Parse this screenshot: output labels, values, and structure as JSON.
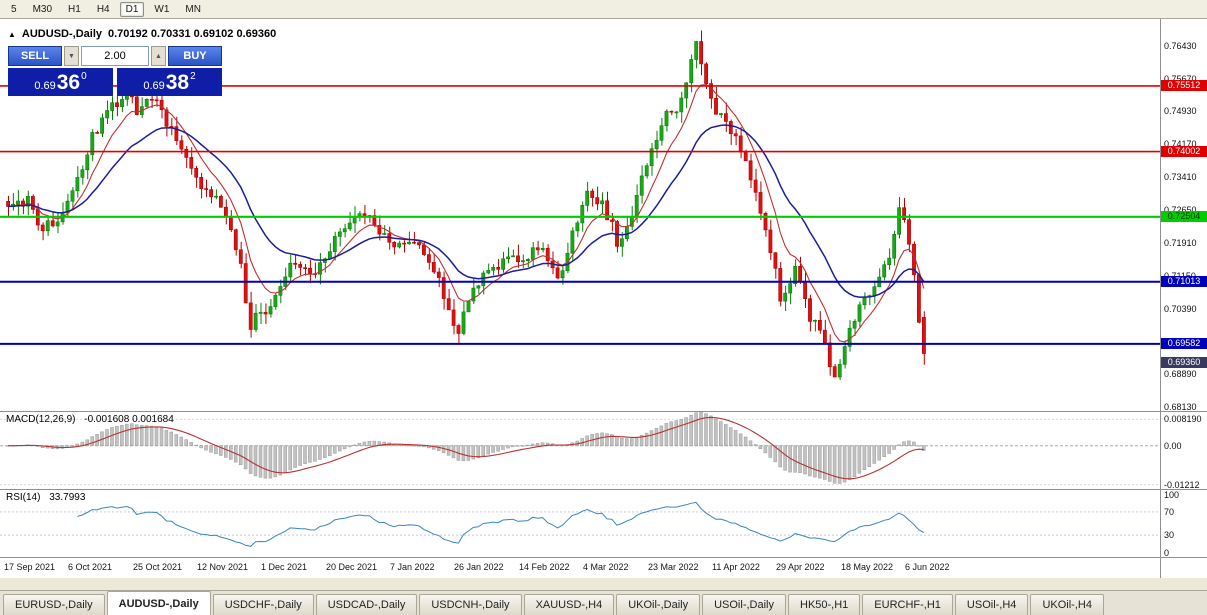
{
  "toolbar": {
    "timeframes": [
      "5",
      "M30",
      "H1",
      "H4",
      "D1",
      "W1",
      "MN"
    ],
    "active": "D1"
  },
  "icons": {
    "collapse": "▲",
    "volume_up": "▲",
    "volume_down": "▼"
  },
  "chart": {
    "symbol_title": "AUDUSD-,Daily",
    "ohlc_text": "0.70192 0.70331 0.69102 0.69360",
    "trade_panel": {
      "sell_label": "SELL",
      "buy_label": "BUY",
      "volume": "2.00",
      "sell_price": {
        "prefix": "0.69",
        "big": "36",
        "sup": "0"
      },
      "buy_price": {
        "prefix": "0.69",
        "big": "38",
        "sup": "2"
      }
    }
  },
  "macd_panel": {
    "label": "MACD(12,26,9)",
    "values": "-0.001608 0.001684"
  },
  "rsi_panel": {
    "label": "RSI(14)",
    "value": "33.7993"
  },
  "tabs": {
    "active": "AUDUSD-,Daily",
    "items": [
      "EURUSD-,Daily",
      "AUDUSD-,Daily",
      "USDCHF-,Daily",
      "USDCAD-,Daily",
      "USDCNH-,Daily",
      "XAUUSD-,H4",
      "UKOil-,Daily",
      "USOil-,Daily",
      "HK50-,H1",
      "EURCHF-,H1",
      "USOil-,H4",
      "UKOil-,H4"
    ]
  },
  "chart_data": {
    "type": "candlestick",
    "symbol": "AUDUSD",
    "period": "Daily",
    "bars": 186,
    "x0": 8,
    "spacing": 4.95,
    "seed": 20220610,
    "noise": 0.0032,
    "wick": 0.0026,
    "price_min": 0.6804,
    "price_max": 0.7705,
    "last_bar": {
      "o": 0.70192,
      "h": 0.70331,
      "l": 0.69102,
      "c": 0.6936
    },
    "close_anchors": [
      [
        0,
        0.7265
      ],
      [
        4,
        0.7292
      ],
      [
        7,
        0.7222
      ],
      [
        11,
        0.7258
      ],
      [
        13,
        0.73
      ],
      [
        17,
        0.7432
      ],
      [
        21,
        0.7498
      ],
      [
        24,
        0.7536
      ],
      [
        26,
        0.7488
      ],
      [
        29,
        0.7524
      ],
      [
        33,
        0.7452
      ],
      [
        36,
        0.7396
      ],
      [
        39,
        0.733
      ],
      [
        42,
        0.7296
      ],
      [
        45,
        0.7224
      ],
      [
        47,
        0.7128
      ],
      [
        49,
        0.7005
      ],
      [
        52,
        0.7042
      ],
      [
        55,
        0.7092
      ],
      [
        58,
        0.7152
      ],
      [
        61,
        0.7112
      ],
      [
        65,
        0.7182
      ],
      [
        69,
        0.7242
      ],
      [
        73,
        0.7256
      ],
      [
        78,
        0.718
      ],
      [
        82,
        0.7206
      ],
      [
        86,
        0.713
      ],
      [
        89,
        0.7032
      ],
      [
        91,
        0.6996
      ],
      [
        94,
        0.7072
      ],
      [
        98,
        0.7142
      ],
      [
        104,
        0.7152
      ],
      [
        108,
        0.7186
      ],
      [
        111,
        0.7096
      ],
      [
        114,
        0.7216
      ],
      [
        117,
        0.7302
      ],
      [
        120,
        0.7288
      ],
      [
        123,
        0.7192
      ],
      [
        126,
        0.7262
      ],
      [
        130,
        0.74
      ],
      [
        133,
        0.7482
      ],
      [
        136,
        0.7512
      ],
      [
        139,
        0.7648
      ],
      [
        141,
        0.7562
      ],
      [
        143,
        0.7482
      ],
      [
        146,
        0.7452
      ],
      [
        149,
        0.7392
      ],
      [
        152,
        0.7252
      ],
      [
        154,
        0.7178
      ],
      [
        156,
        0.7062
      ],
      [
        159,
        0.7122
      ],
      [
        162,
        0.7022
      ],
      [
        165,
        0.6952
      ],
      [
        167,
        0.6872
      ],
      [
        170,
        0.6982
      ],
      [
        173,
        0.7062
      ],
      [
        176,
        0.7112
      ],
      [
        178,
        0.7152
      ],
      [
        180,
        0.7262
      ],
      [
        181,
        0.7232
      ],
      [
        182,
        0.7192
      ],
      [
        183,
        0.7132
      ],
      [
        184,
        0.7022
      ],
      [
        185,
        0.6936
      ]
    ],
    "colors": {
      "up_stroke": "#067f06",
      "up_fill": "#1aa81a",
      "down_stroke": "#b30000",
      "down_fill": "#dd1111",
      "ma_fast": "#c03030",
      "ma_slow": "#1c1c9e",
      "macd_hist": "#c2c2c2",
      "macd_signal": "#b73333",
      "rsi_line": "#3a86c0"
    },
    "levels": [
      {
        "price": 0.75512,
        "label": "0.75512",
        "color": "#e00000",
        "width": 1.6
      },
      {
        "price": 0.74002,
        "label": "0.74002",
        "color": "#e00000",
        "width": 1.6
      },
      {
        "price": 0.72504,
        "label": "0.72504",
        "color": "#00cc00",
        "width": 2.2,
        "text": "#003300"
      },
      {
        "price": 0.71013,
        "label": "0.71013",
        "color": "#0000bb",
        "width": 2
      },
      {
        "price": 0.69582,
        "label": "0.69582",
        "color": "#0000bb",
        "width": 2
      }
    ],
    "current_price": {
      "value": 0.6936,
      "label": "0.69360",
      "color": "#3a3a5e"
    },
    "y_ticks": [
      "0.76430",
      "0.75670",
      "0.74930",
      "0.74170",
      "0.73410",
      "0.72650",
      "0.71910",
      "0.71150",
      "0.70390",
      "0.69630",
      "0.68890",
      "0.68130"
    ],
    "x_labels": [
      "17 Sep 2021",
      "6 Oct 2021",
      "25 Oct 2021",
      "12 Nov 2021",
      "1 Dec 2021",
      "20 Dec 2021",
      "7 Jan 2022",
      "26 Jan 2022",
      "14 Feb 2022",
      "4 Mar 2022",
      "23 Mar 2022",
      "11 Apr 2022",
      "29 Apr 2022",
      "18 May 2022",
      "6 Jun 2022"
    ],
    "macd": {
      "fast": 12,
      "slow": 26,
      "signal_period": 9,
      "max": 0.0105,
      "min": -0.0135,
      "ticks": [
        {
          "v": 0.00819,
          "label": "0.008190"
        },
        {
          "v": 0,
          "label": "0.00"
        },
        {
          "v": -0.01212,
          "label": "-0.01212"
        }
      ]
    },
    "rsi": {
      "period": 14,
      "levels": [
        70,
        30
      ],
      "ticks": [
        {
          "v": 100,
          "label": "100"
        },
        {
          "v": 70,
          "label": "70"
        },
        {
          "v": 30,
          "label": "30"
        },
        {
          "v": 0,
          "label": "0"
        }
      ]
    }
  }
}
